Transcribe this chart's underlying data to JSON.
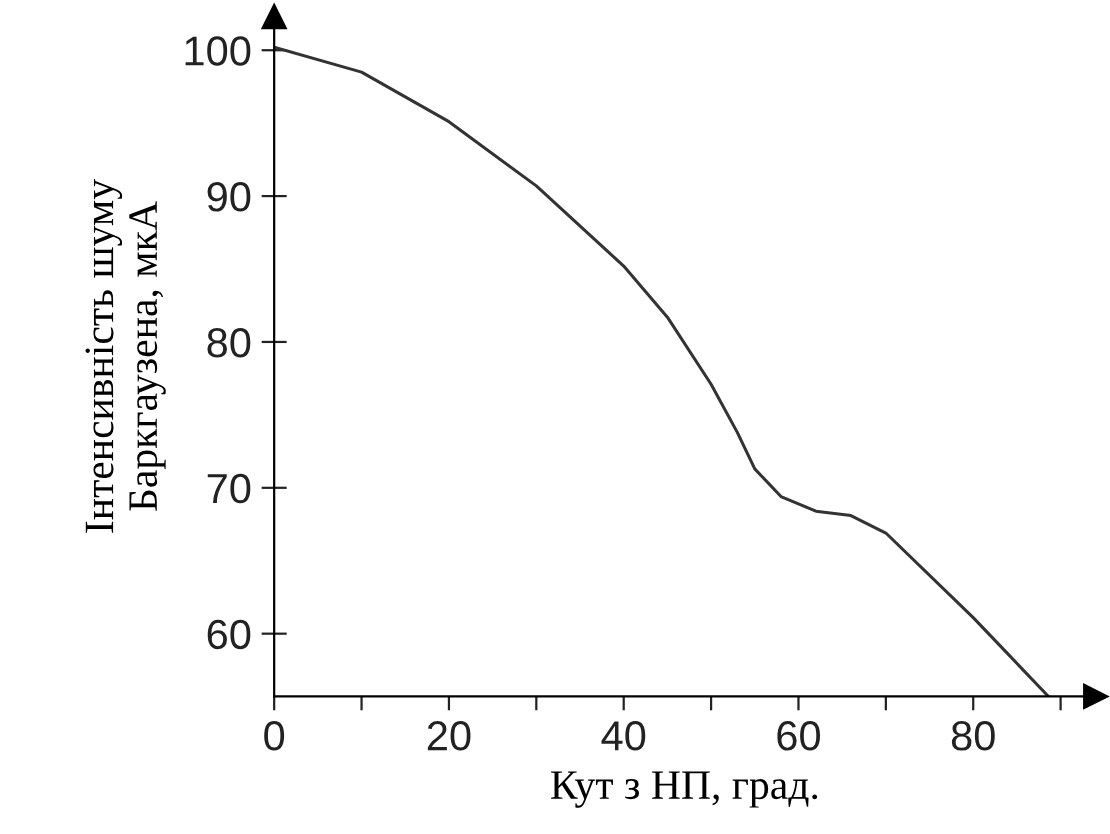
{
  "chart_data": {
    "type": "line",
    "xlabel": "Кут з НП, град.",
    "ylabel": "Інтенсивність шуму\nБаркгаузена, мкА",
    "x": [
      0,
      10,
      20,
      30,
      40,
      45,
      50,
      53,
      55,
      58,
      62,
      66,
      70,
      80,
      88.6
    ],
    "series": [
      {
        "color": "#333333",
        "values": [
          100.2,
          98.5,
          95.1,
          90.7,
          85.2,
          81.7,
          77.1,
          73.8,
          71.3,
          69.4,
          68.4,
          68.1,
          66.9,
          61.1,
          55.7
        ]
      }
    ],
    "xlim": [
      0,
      94
    ],
    "ylim": [
      55.7,
      102.3
    ],
    "xticks": [
      0,
      {
        "value": 10,
        "label": null
      },
      20,
      {
        "value": 30,
        "label": null
      },
      40,
      {
        "value": 50,
        "label": null
      },
      60,
      {
        "value": 70,
        "label": null
      },
      80,
      {
        "value": 90,
        "label": null
      }
    ],
    "yticks": [
      60,
      70,
      80,
      90,
      100
    ],
    "grid": false,
    "legend": false,
    "marker": "none",
    "line_style": "solid"
  }
}
